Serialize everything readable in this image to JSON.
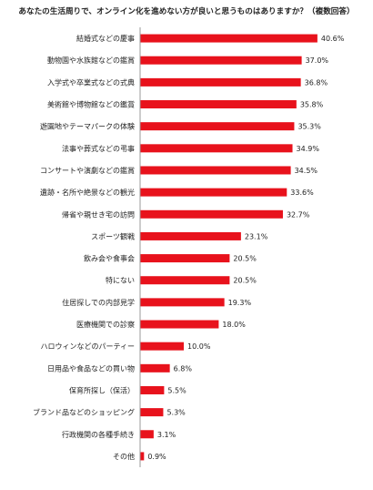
{
  "chart_data": {
    "type": "bar",
    "orientation": "horizontal",
    "title": "あなたの生活周りで、オンライン化を進めない方が良いと思うものはありますか？（複数回答）",
    "categories": [
      "結婚式などの慶事",
      "動物園や水族館などの鑑賞",
      "入学式や卒業式などの式典",
      "美術館や博物館などの鑑賞",
      "遊園地やテーマパークの体験",
      "法事や葬式などの弔事",
      "コンサートや演劇などの鑑賞",
      "遺跡・名所や絶景などの観光",
      "帰省や親せき宅の訪問",
      "スポーツ観戦",
      "飲み会や食事会",
      "特にない",
      "住居探しでの内部見学",
      "医療機関での診察",
      "ハロウィンなどのパーティー",
      "日用品や食品などの買い物",
      "保育所探し（保活）",
      "ブランド品などのショッピング",
      "行政機関の各種手続き",
      "その他"
    ],
    "values": [
      40.6,
      37.0,
      36.8,
      35.8,
      35.3,
      34.9,
      34.5,
      33.6,
      32.7,
      23.1,
      20.5,
      20.5,
      19.3,
      18.0,
      10.0,
      6.8,
      5.5,
      5.3,
      3.1,
      0.9
    ],
    "value_labels": [
      "40.6%",
      "37.0%",
      "36.8%",
      "35.8%",
      "35.3%",
      "34.9%",
      "34.5%",
      "33.6%",
      "32.7%",
      "23.1%",
      "20.5%",
      "20.5%",
      "19.3%",
      "18.0%",
      "10.0%",
      "6.8%",
      "5.5%",
      "5.3%",
      "3.1%",
      "0.9%"
    ],
    "xlim": [
      0,
      45
    ],
    "bar_color": "#e8121c",
    "grid": false,
    "legend": "none"
  }
}
